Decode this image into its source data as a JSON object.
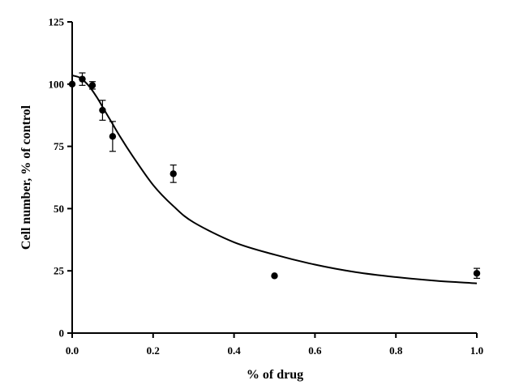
{
  "chart_data": {
    "type": "scatter",
    "xlabel": "% of drug",
    "ylabel": "Cell number, % of control",
    "xlim": [
      0,
      1.0
    ],
    "ylim": [
      0,
      125
    ],
    "x_ticks": [
      "0.0",
      "0.2",
      "0.4",
      "0.6",
      "0.8",
      "1.0"
    ],
    "y_ticks": [
      "0",
      "25",
      "50",
      "75",
      "100",
      "125"
    ],
    "grid": false,
    "legend": "none",
    "series": [
      {
        "points": [
          {
            "x": 0.0,
            "y": 100,
            "err": 0
          },
          {
            "x": 0.025,
            "y": 102,
            "err": 2.5
          },
          {
            "x": 0.05,
            "y": 99.5,
            "err": 1.5
          },
          {
            "x": 0.075,
            "y": 89.5,
            "err": 4
          },
          {
            "x": 0.1,
            "y": 79,
            "err": 6
          },
          {
            "x": 0.25,
            "y": 64,
            "err": 3.5
          },
          {
            "x": 0.5,
            "y": 23,
            "err": 0
          },
          {
            "x": 1.0,
            "y": 24,
            "err": 2
          }
        ]
      }
    ],
    "fit_curve": {
      "x": [
        0,
        0.02,
        0.04,
        0.06,
        0.08,
        0.1,
        0.12,
        0.15,
        0.2,
        0.25,
        0.3,
        0.4,
        0.5,
        0.6,
        0.7,
        0.8,
        0.9,
        1.0
      ],
      "y": [
        103.5,
        102.5,
        99.5,
        95,
        89.5,
        84,
        78.5,
        71,
        59.5,
        51,
        44.5,
        36.5,
        31.5,
        27.5,
        24.5,
        22.5,
        21,
        20
      ]
    }
  }
}
